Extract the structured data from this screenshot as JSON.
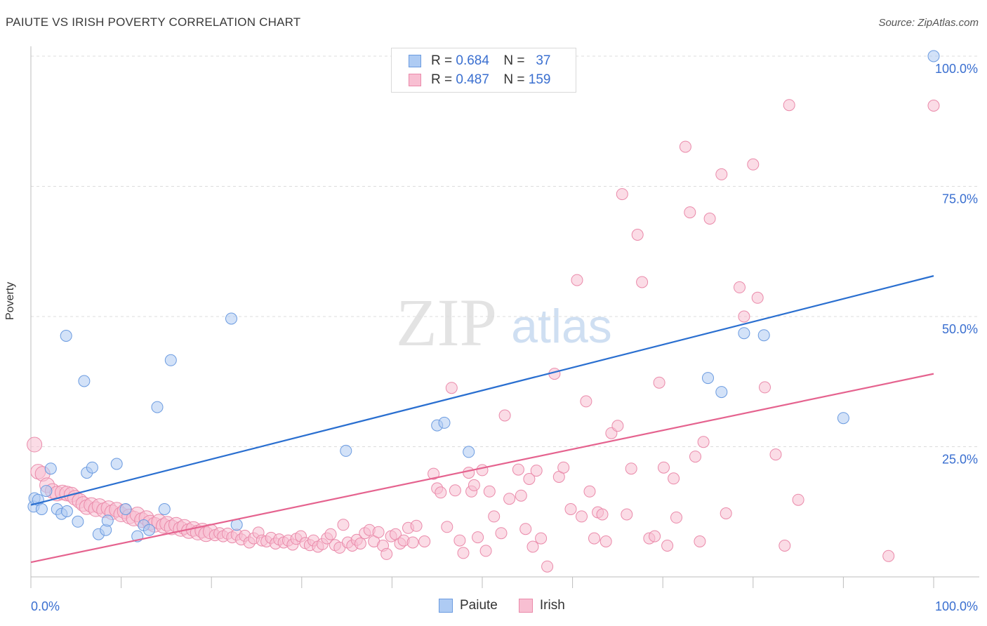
{
  "title": "PAIUTE VS IRISH POVERTY CORRELATION CHART",
  "source": "Source: ZipAtlas.com",
  "watermark": {
    "zip": "ZIP",
    "atlas": "atlas"
  },
  "legend": {
    "r_label": "R =",
    "n_label": "N =",
    "rows": [
      {
        "series": "Paiute",
        "r": "0.684",
        "n": "37"
      },
      {
        "series": "Irish",
        "r": "0.487",
        "n": "159"
      }
    ]
  },
  "colors": {
    "paiute_fill": "#aecbf3",
    "paiute_stroke": "#6b9be0",
    "paiute_line": "#2a6fd0",
    "irish_fill": "#f8bfd2",
    "irish_stroke": "#ea8aaa",
    "irish_line": "#e5638f",
    "tick_label": "#3a6fd0"
  },
  "chart_data": {
    "type": "scatter",
    "title": "PAIUTE VS IRISH POVERTY CORRELATION CHART",
    "xlabel": "",
    "ylabel": "Poverty",
    "xlim": [
      0,
      100
    ],
    "ylim": [
      0,
      100
    ],
    "x_tick_labels": [
      "0.0%",
      "100.0%"
    ],
    "y_ticks": [
      25,
      50,
      75,
      100
    ],
    "y_tick_labels": [
      "25.0%",
      "50.0%",
      "75.0%",
      "100.0%"
    ],
    "grid": "horizontal dashed",
    "legend_placement": "bottom-center",
    "series": [
      {
        "name": "Paiute",
        "r": 0.684,
        "n": 37,
        "trend": {
          "x": [
            0,
            100
          ],
          "y": [
            13.8,
            57.8
          ]
        },
        "points": [
          [
            0.3,
            13.5
          ],
          [
            0.4,
            15.1
          ],
          [
            0.8,
            14.8
          ],
          [
            1.2,
            13.0
          ],
          [
            1.7,
            16.5
          ],
          [
            2.2,
            20.8
          ],
          [
            2.9,
            13.0
          ],
          [
            3.4,
            12.1
          ],
          [
            4.0,
            12.6
          ],
          [
            5.2,
            10.6
          ],
          [
            3.9,
            46.3
          ],
          [
            5.9,
            37.6
          ],
          [
            6.2,
            20.0
          ],
          [
            6.8,
            21.0
          ],
          [
            7.5,
            8.2
          ],
          [
            8.3,
            9.0
          ],
          [
            8.5,
            10.8
          ],
          [
            9.5,
            21.7
          ],
          [
            10.5,
            13.0
          ],
          [
            11.8,
            7.8
          ],
          [
            12.5,
            9.9
          ],
          [
            13.1,
            9.0
          ],
          [
            14.0,
            32.6
          ],
          [
            14.8,
            13.0
          ],
          [
            15.5,
            41.6
          ],
          [
            22.2,
            49.6
          ],
          [
            22.8,
            10.0
          ],
          [
            34.9,
            24.2
          ],
          [
            45.0,
            29.1
          ],
          [
            45.8,
            29.6
          ],
          [
            48.5,
            24.0
          ],
          [
            75.0,
            38.2
          ],
          [
            76.5,
            35.5
          ],
          [
            79.0,
            46.8
          ],
          [
            81.2,
            46.4
          ],
          [
            90.0,
            30.5
          ],
          [
            100.0,
            100.0
          ]
        ]
      },
      {
        "name": "Irish",
        "r": 0.487,
        "n": 159,
        "trend": {
          "x": [
            0,
            100
          ],
          "y": [
            2.8,
            39.0
          ]
        },
        "points": [
          [
            0.4,
            25.4
          ],
          [
            0.8,
            20.2
          ],
          [
            1.3,
            19.8
          ],
          [
            1.8,
            17.6
          ],
          [
            2.4,
            16.5
          ],
          [
            2.9,
            16.0
          ],
          [
            3.5,
            16.2
          ],
          [
            4.0,
            16.0
          ],
          [
            4.5,
            15.8
          ],
          [
            4.9,
            15.2
          ],
          [
            5.4,
            14.6
          ],
          [
            5.8,
            14.0
          ],
          [
            6.2,
            13.4
          ],
          [
            6.7,
            13.8
          ],
          [
            7.2,
            13.0
          ],
          [
            7.6,
            13.6
          ],
          [
            8.1,
            12.8
          ],
          [
            8.6,
            13.2
          ],
          [
            9.0,
            12.4
          ],
          [
            9.5,
            12.9
          ],
          [
            10.0,
            12.0
          ],
          [
            10.4,
            12.6
          ],
          [
            10.9,
            11.6
          ],
          [
            11.4,
            11.2
          ],
          [
            11.8,
            12.0
          ],
          [
            12.3,
            10.9
          ],
          [
            12.8,
            11.3
          ],
          [
            13.2,
            10.4
          ],
          [
            13.7,
            10.0
          ],
          [
            14.2,
            10.6
          ],
          [
            14.7,
            9.8
          ],
          [
            15.1,
            10.2
          ],
          [
            15.6,
            9.5
          ],
          [
            16.1,
            10.0
          ],
          [
            16.6,
            9.2
          ],
          [
            17.0,
            9.6
          ],
          [
            17.5,
            8.8
          ],
          [
            18.0,
            9.2
          ],
          [
            18.5,
            8.5
          ],
          [
            19.0,
            8.9
          ],
          [
            19.4,
            8.2
          ],
          [
            19.9,
            8.7
          ],
          [
            20.4,
            8.0
          ],
          [
            20.9,
            8.4
          ],
          [
            21.3,
            7.8
          ],
          [
            21.8,
            8.3
          ],
          [
            22.3,
            7.6
          ],
          [
            22.8,
            8.1
          ],
          [
            23.3,
            7.2
          ],
          [
            23.7,
            7.9
          ],
          [
            24.2,
            6.6
          ],
          [
            24.7,
            7.4
          ],
          [
            25.2,
            8.5
          ],
          [
            25.6,
            7.0
          ],
          [
            26.1,
            6.8
          ],
          [
            26.6,
            7.5
          ],
          [
            27.1,
            6.4
          ],
          [
            27.5,
            7.2
          ],
          [
            28.0,
            6.6
          ],
          [
            28.5,
            7.0
          ],
          [
            29.0,
            6.2
          ],
          [
            29.4,
            7.3
          ],
          [
            29.9,
            7.8
          ],
          [
            30.4,
            6.5
          ],
          [
            30.9,
            6.1
          ],
          [
            31.3,
            7.0
          ],
          [
            31.8,
            5.8
          ],
          [
            32.3,
            6.3
          ],
          [
            32.8,
            7.4
          ],
          [
            33.2,
            8.2
          ],
          [
            33.7,
            6.1
          ],
          [
            34.2,
            5.6
          ],
          [
            34.6,
            10.0
          ],
          [
            35.1,
            6.6
          ],
          [
            35.6,
            6.0
          ],
          [
            36.1,
            7.1
          ],
          [
            36.5,
            6.4
          ],
          [
            37.0,
            8.4
          ],
          [
            37.5,
            9.0
          ],
          [
            38.0,
            6.8
          ],
          [
            38.5,
            8.6
          ],
          [
            39.0,
            6.0
          ],
          [
            39.4,
            4.4
          ],
          [
            39.9,
            7.8
          ],
          [
            40.4,
            8.2
          ],
          [
            40.9,
            6.4
          ],
          [
            41.3,
            7.0
          ],
          [
            41.8,
            9.4
          ],
          [
            42.3,
            6.6
          ],
          [
            42.7,
            9.8
          ],
          [
            43.6,
            6.8
          ],
          [
            44.6,
            19.8
          ],
          [
            45.0,
            17.0
          ],
          [
            45.4,
            16.2
          ],
          [
            46.1,
            9.6
          ],
          [
            46.6,
            36.3
          ],
          [
            47.0,
            16.6
          ],
          [
            47.5,
            7.0
          ],
          [
            47.9,
            4.6
          ],
          [
            48.5,
            20.0
          ],
          [
            48.8,
            16.4
          ],
          [
            49.1,
            17.6
          ],
          [
            49.5,
            7.6
          ],
          [
            50.0,
            20.5
          ],
          [
            50.4,
            5.0
          ],
          [
            50.8,
            16.4
          ],
          [
            51.3,
            11.6
          ],
          [
            52.1,
            8.4
          ],
          [
            52.5,
            31.0
          ],
          [
            53.0,
            15.0
          ],
          [
            54.0,
            20.6
          ],
          [
            54.3,
            15.6
          ],
          [
            54.8,
            9.2
          ],
          [
            55.2,
            18.8
          ],
          [
            55.6,
            5.8
          ],
          [
            56.0,
            20.4
          ],
          [
            56.5,
            7.4
          ],
          [
            57.2,
            2.0
          ],
          [
            58.0,
            39.0
          ],
          [
            58.5,
            19.2
          ],
          [
            59.0,
            21.0
          ],
          [
            59.8,
            13.0
          ],
          [
            60.5,
            57.0
          ],
          [
            61.0,
            11.6
          ],
          [
            61.5,
            33.7
          ],
          [
            61.9,
            16.4
          ],
          [
            62.4,
            7.4
          ],
          [
            62.8,
            12.4
          ],
          [
            63.3,
            12.0
          ],
          [
            63.7,
            6.8
          ],
          [
            64.3,
            27.6
          ],
          [
            65.0,
            29.0
          ],
          [
            65.5,
            73.5
          ],
          [
            66.0,
            12.0
          ],
          [
            66.5,
            20.8
          ],
          [
            67.2,
            65.7
          ],
          [
            67.7,
            56.6
          ],
          [
            68.5,
            7.4
          ],
          [
            69.1,
            7.8
          ],
          [
            69.6,
            37.3
          ],
          [
            70.1,
            21.0
          ],
          [
            70.5,
            6.0
          ],
          [
            71.2,
            18.9
          ],
          [
            71.5,
            11.4
          ],
          [
            72.5,
            82.6
          ],
          [
            73.0,
            70.0
          ],
          [
            73.6,
            23.1
          ],
          [
            74.1,
            6.8
          ],
          [
            74.5,
            25.9
          ],
          [
            75.2,
            68.8
          ],
          [
            76.5,
            77.3
          ],
          [
            77.0,
            12.2
          ],
          [
            78.5,
            55.6
          ],
          [
            79.0,
            50.0
          ],
          [
            80.0,
            79.2
          ],
          [
            80.5,
            53.6
          ],
          [
            81.3,
            36.4
          ],
          [
            82.5,
            23.5
          ],
          [
            83.5,
            6.0
          ],
          [
            84.0,
            90.6
          ],
          [
            85.0,
            14.8
          ],
          [
            95.0,
            4.0
          ],
          [
            100.0,
            90.5
          ]
        ]
      }
    ]
  }
}
